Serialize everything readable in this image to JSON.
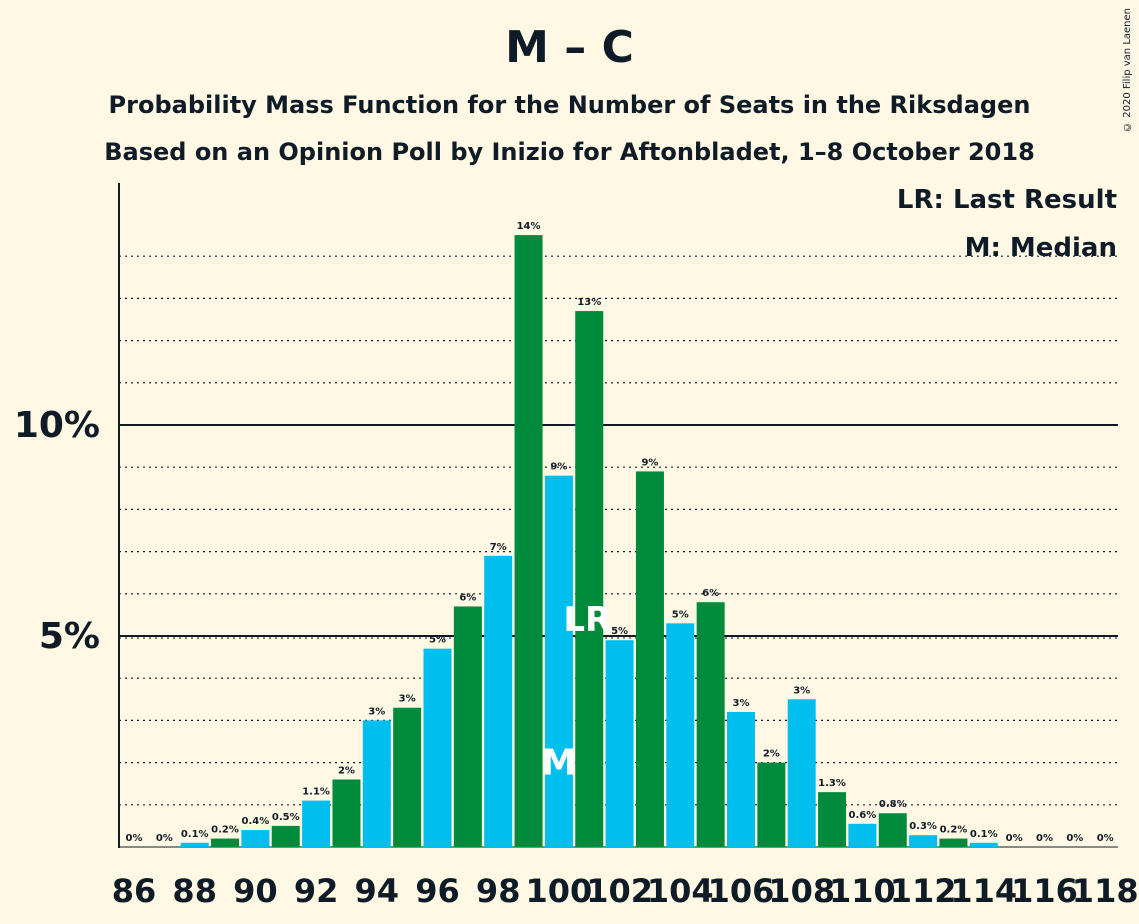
{
  "header": {
    "title": "M – C",
    "subtitle1": "Probability Mass Function for the Number of Seats in the Riksdagen",
    "subtitle2": "Based on an Opinion Poll by Inizio for Aftonbladet, 1–8 October 2018",
    "copyright": "© 2020 Filip van Laenen"
  },
  "legend": {
    "last_result": "LR: Last Result",
    "median": "M: Median"
  },
  "colors": {
    "background": "#fff8e4",
    "blue": "#00bfee",
    "green": "#008b3c",
    "text": "#0f1c28"
  },
  "chart_data": {
    "type": "bar",
    "xlabel": "",
    "ylabel": "",
    "ylim": [
      0,
      15
    ],
    "y_ticks": [
      {
        "value": 5,
        "label": "5%"
      },
      {
        "value": 10,
        "label": "10%"
      }
    ],
    "x_tick_labels": [
      "86",
      "88",
      "90",
      "92",
      "94",
      "96",
      "98",
      "100",
      "102",
      "104",
      "106",
      "108",
      "110",
      "112",
      "114",
      "116",
      "118"
    ],
    "categories": [
      86,
      87,
      88,
      89,
      90,
      91,
      92,
      93,
      94,
      95,
      96,
      97,
      98,
      99,
      100,
      101,
      102,
      103,
      104,
      105,
      106,
      107,
      108,
      109,
      110,
      111,
      112,
      113,
      114,
      115,
      116,
      117,
      118
    ],
    "values": [
      0,
      0,
      0.1,
      0.2,
      0.4,
      0.5,
      1.1,
      1.6,
      3.0,
      3.3,
      4.7,
      5.7,
      6.9,
      14.5,
      8.8,
      12.7,
      4.9,
      8.9,
      5.3,
      5.8,
      3.2,
      2.0,
      3.5,
      1.3,
      0.55,
      0.8,
      0.28,
      0.2,
      0.1,
      0,
      0,
      0,
      0
    ],
    "labels": [
      "0%",
      "0%",
      "0.1%",
      "0.2%",
      "0.4%",
      "0.5%",
      "1.1%",
      "2%",
      "3%",
      "3%",
      "5%",
      "6%",
      "7%",
      "14%",
      "9%",
      "13%",
      "5%",
      "9%",
      "5%",
      "6%",
      "3%",
      "2%",
      "3%",
      "1.3%",
      "0.6%",
      "0.8%",
      "0.3%",
      "0.2%",
      "0.1%",
      "0%",
      "0%",
      "0%",
      "0%"
    ],
    "median_seat": 100,
    "median_marker": "M",
    "last_result_seat": 101,
    "last_result_marker": "LR",
    "grid": "dotted every 1%, solid at 5% and 10%"
  }
}
